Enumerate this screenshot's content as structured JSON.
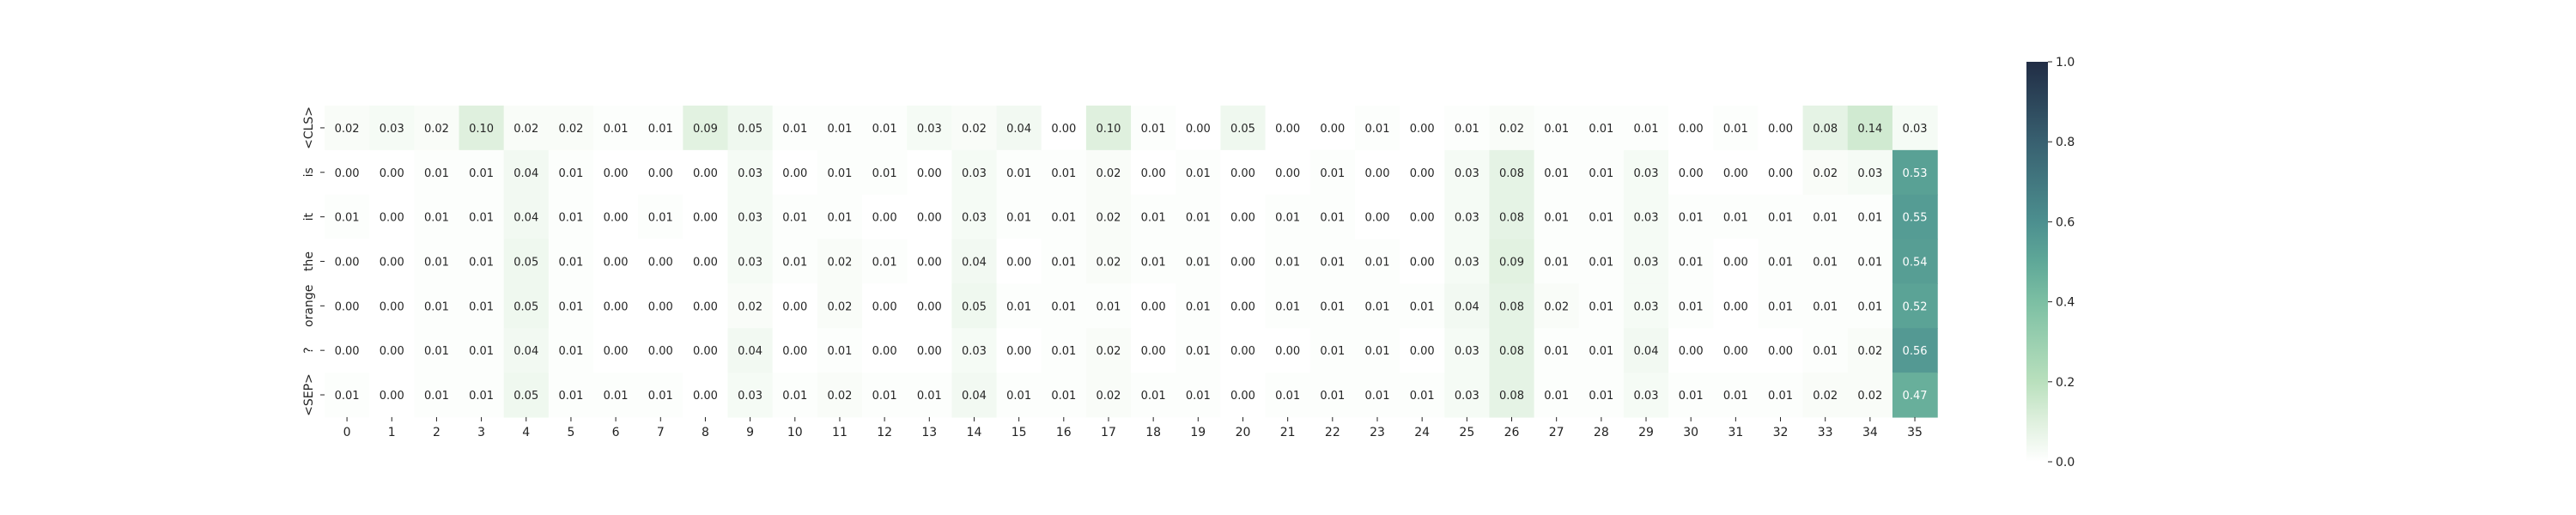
{
  "chart_data": {
    "type": "heatmap",
    "rows": [
      "<CLS>",
      "is",
      "it",
      "the",
      "orange",
      "?",
      "<SEP>"
    ],
    "columns": [
      "0",
      "1",
      "2",
      "3",
      "4",
      "5",
      "6",
      "7",
      "8",
      "9",
      "10",
      "11",
      "12",
      "13",
      "14",
      "15",
      "16",
      "17",
      "18",
      "19",
      "20",
      "21",
      "22",
      "23",
      "24",
      "25",
      "26",
      "27",
      "28",
      "29",
      "30",
      "31",
      "32",
      "33",
      "34",
      "35"
    ],
    "values": [
      [
        0.02,
        0.03,
        0.02,
        0.1,
        0.02,
        0.02,
        0.01,
        0.01,
        0.09,
        0.05,
        0.01,
        0.01,
        0.01,
        0.03,
        0.02,
        0.04,
        0.0,
        0.1,
        0.01,
        0.0,
        0.05,
        0.0,
        0.0,
        0.01,
        0.0,
        0.01,
        0.02,
        0.01,
        0.01,
        0.01,
        0.0,
        0.01,
        0.0,
        0.08,
        0.14,
        0.03
      ],
      [
        0.0,
        0.0,
        0.01,
        0.01,
        0.04,
        0.01,
        0.0,
        0.0,
        0.0,
        0.03,
        0.0,
        0.01,
        0.01,
        0.0,
        0.03,
        0.01,
        0.01,
        0.02,
        0.0,
        0.01,
        0.0,
        0.0,
        0.01,
        0.0,
        0.0,
        0.03,
        0.08,
        0.01,
        0.01,
        0.03,
        0.0,
        0.0,
        0.0,
        0.02,
        0.03,
        0.53
      ],
      [
        0.01,
        0.0,
        0.01,
        0.01,
        0.04,
        0.01,
        0.0,
        0.01,
        0.0,
        0.03,
        0.01,
        0.01,
        0.0,
        0.0,
        0.03,
        0.01,
        0.01,
        0.02,
        0.01,
        0.01,
        0.0,
        0.01,
        0.01,
        0.0,
        0.0,
        0.03,
        0.08,
        0.01,
        0.01,
        0.03,
        0.01,
        0.01,
        0.01,
        0.01,
        0.01,
        0.55
      ],
      [
        0.0,
        0.0,
        0.01,
        0.01,
        0.05,
        0.01,
        0.0,
        0.0,
        0.0,
        0.03,
        0.01,
        0.02,
        0.01,
        0.0,
        0.04,
        0.0,
        0.01,
        0.02,
        0.01,
        0.01,
        0.0,
        0.01,
        0.01,
        0.01,
        0.0,
        0.03,
        0.09,
        0.01,
        0.01,
        0.03,
        0.01,
        0.0,
        0.01,
        0.01,
        0.01,
        0.54
      ],
      [
        0.0,
        0.0,
        0.01,
        0.01,
        0.05,
        0.01,
        0.0,
        0.0,
        0.0,
        0.02,
        0.0,
        0.02,
        0.0,
        0.0,
        0.05,
        0.01,
        0.01,
        0.01,
        0.0,
        0.01,
        0.0,
        0.01,
        0.01,
        0.01,
        0.01,
        0.04,
        0.08,
        0.02,
        0.01,
        0.03,
        0.01,
        0.0,
        0.01,
        0.01,
        0.01,
        0.52
      ],
      [
        0.0,
        0.0,
        0.01,
        0.01,
        0.04,
        0.01,
        0.0,
        0.0,
        0.0,
        0.04,
        0.0,
        0.01,
        0.0,
        0.0,
        0.03,
        0.0,
        0.01,
        0.02,
        0.0,
        0.01,
        0.0,
        0.0,
        0.01,
        0.01,
        0.0,
        0.03,
        0.08,
        0.01,
        0.01,
        0.04,
        0.0,
        0.0,
        0.0,
        0.01,
        0.02,
        0.56
      ],
      [
        0.01,
        0.0,
        0.01,
        0.01,
        0.05,
        0.01,
        0.01,
        0.01,
        0.0,
        0.03,
        0.01,
        0.02,
        0.01,
        0.01,
        0.04,
        0.01,
        0.01,
        0.02,
        0.01,
        0.01,
        0.0,
        0.01,
        0.01,
        0.01,
        0.01,
        0.03,
        0.08,
        0.01,
        0.01,
        0.03,
        0.01,
        0.01,
        0.01,
        0.02,
        0.02,
        0.47
      ]
    ],
    "value_format": "0.00",
    "vmin": 0.0,
    "vmax": 1.0,
    "colorbar": {
      "ticks": [
        0.0,
        0.2,
        0.4,
        0.6,
        0.8,
        1.0
      ],
      "tick_labels": [
        "0.0",
        "0.2",
        "0.4",
        "0.6",
        "0.8",
        "1.0"
      ]
    },
    "colormap": {
      "name": "mint-to-navy",
      "stops": [
        {
          "v": 0.0,
          "color": "#ffffff"
        },
        {
          "v": 0.1,
          "color": "#dff0de"
        },
        {
          "v": 0.2,
          "color": "#b9e0bd"
        },
        {
          "v": 0.4,
          "color": "#7cbfa3"
        },
        {
          "v": 0.5,
          "color": "#5fa898"
        },
        {
          "v": 0.6,
          "color": "#4c8f8f"
        },
        {
          "v": 0.8,
          "color": "#386070"
        },
        {
          "v": 1.0,
          "color": "#212d45"
        }
      ]
    },
    "text_colors": {
      "dark": "#262626",
      "light": "#ffffff"
    },
    "grid": false,
    "title": "",
    "xlabel": "",
    "ylabel": ""
  }
}
